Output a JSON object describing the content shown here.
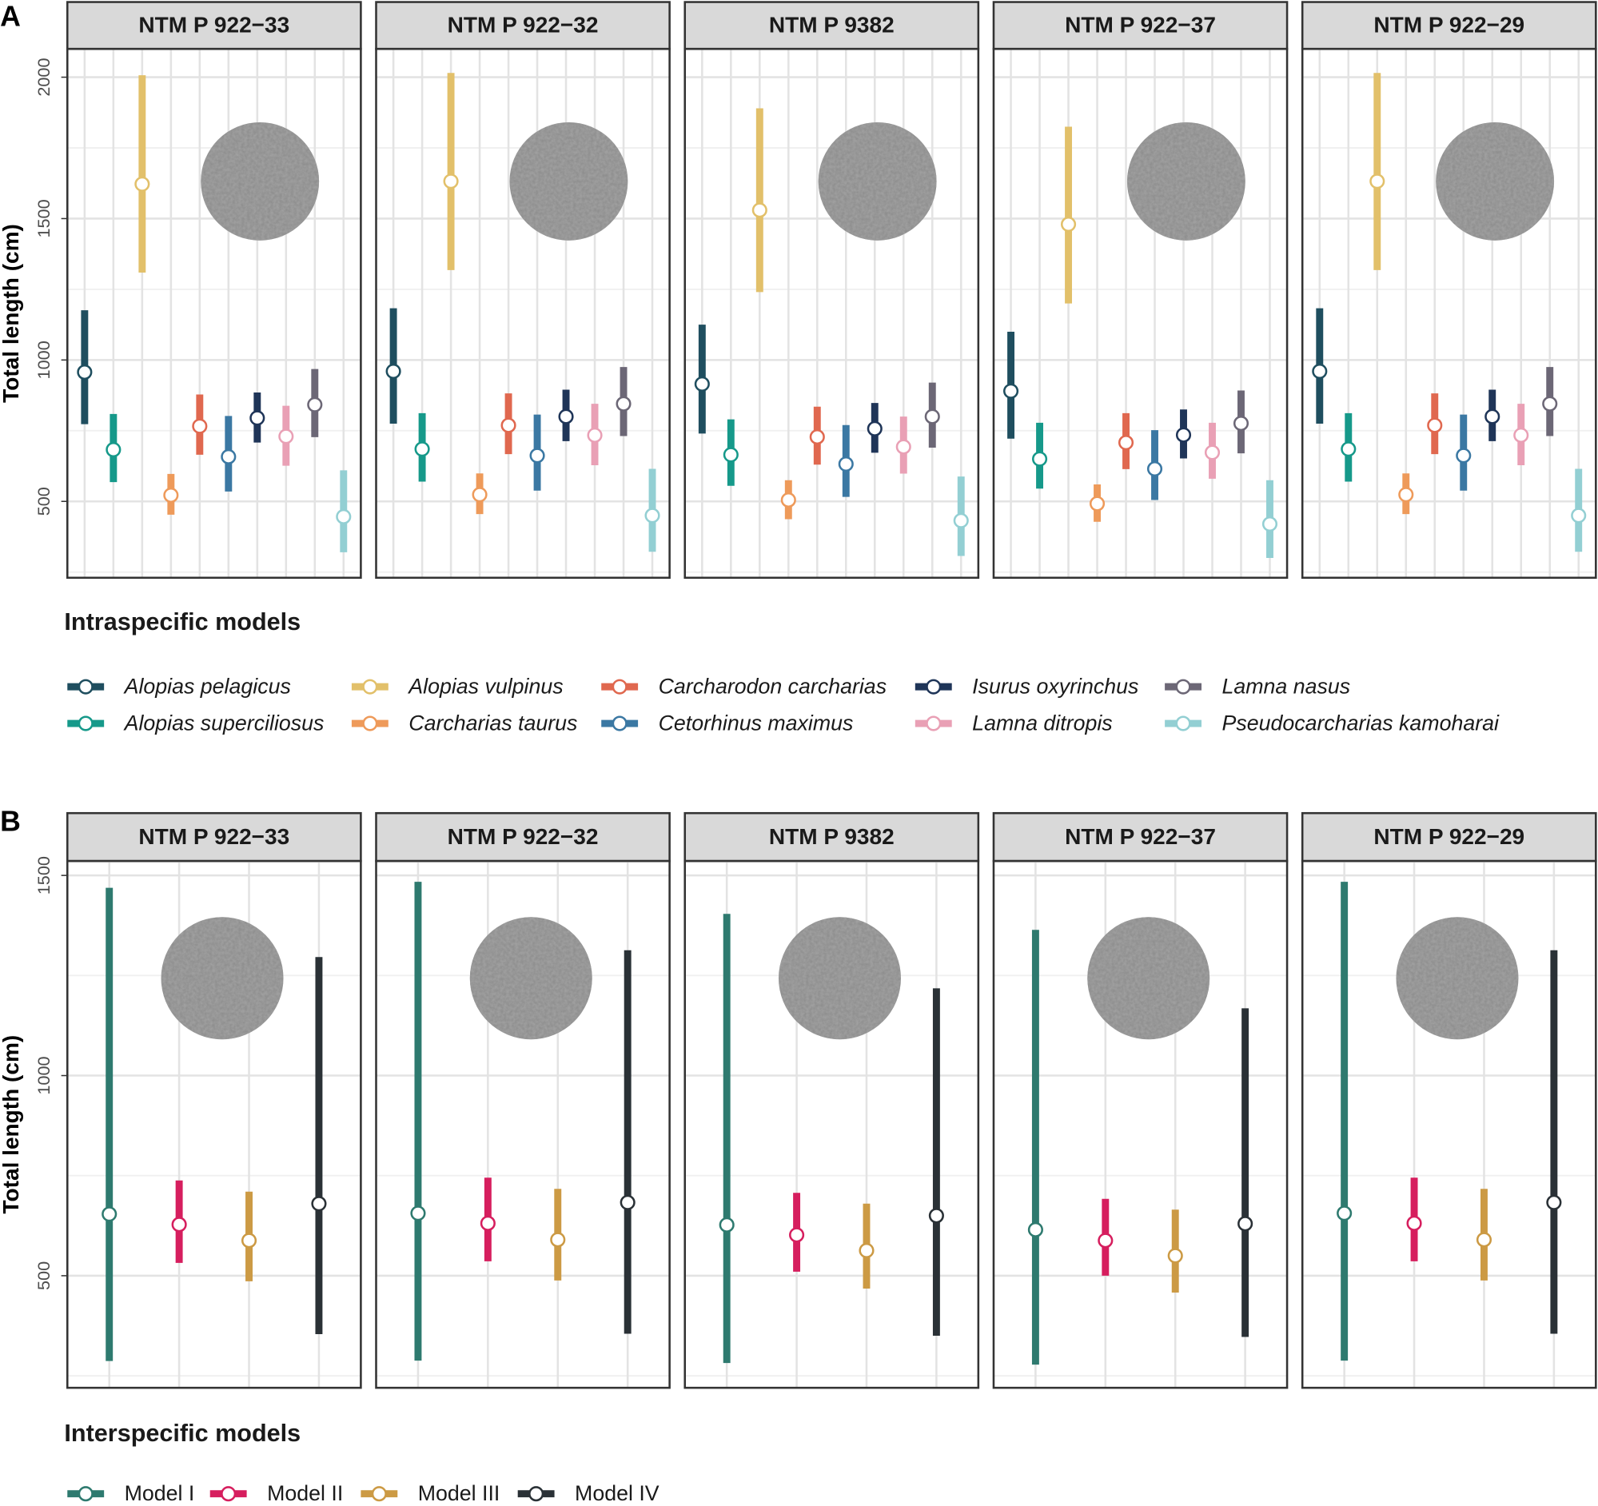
{
  "chart_data": [
    {
      "type": "errorbar",
      "panel_label": "A",
      "y_label": "Total length (cm)",
      "legend_title": "Intraspecific models",
      "italic_names": true,
      "ylim": [
        230,
        2100
      ],
      "yticks": [
        500,
        1000,
        1500,
        2000
      ],
      "grid": true,
      "series": [
        {
          "name": "Alopias pelagicus",
          "color": "#1f4e5f"
        },
        {
          "name": "Alopias superciliosus",
          "color": "#16998a"
        },
        {
          "name": "Alopias vulpinus",
          "color": "#e2c06a"
        },
        {
          "name": "Carcharias taurus",
          "color": "#ee9a5a"
        },
        {
          "name": "Carcharodon carcharias",
          "color": "#e0684f"
        },
        {
          "name": "Cetorhinus maximus",
          "color": "#3b78a3"
        },
        {
          "name": "Isurus oxyrinchus",
          "color": "#1f3558"
        },
        {
          "name": "Lamna ditropis",
          "color": "#e9a0b5"
        },
        {
          "name": "Lamna nasus",
          "color": "#6c6776"
        },
        {
          "name": "Pseudocarcharias kamoharai",
          "color": "#93cfd3"
        }
      ],
      "facets": [
        {
          "title": "NTM P 922−33",
          "values": [
            957,
            683,
            1622,
            522,
            766,
            658,
            795,
            730,
            842,
            446
          ],
          "lows": [
            773,
            568,
            1309,
            453,
            665,
            535,
            708,
            626,
            727,
            320
          ],
          "highs": [
            1176,
            809,
            2007,
            597,
            878,
            802,
            885,
            838,
            968,
            610
          ]
        },
        {
          "title": "NTM P 922−32",
          "values": [
            960,
            685,
            1632,
            524,
            769,
            662,
            800,
            734,
            845,
            450
          ],
          "lows": [
            775,
            570,
            1318,
            455,
            667,
            538,
            713,
            628,
            731,
            322
          ],
          "highs": [
            1183,
            812,
            2015,
            599,
            882,
            807,
            895,
            845,
            975,
            615
          ]
        },
        {
          "title": "NTM P 9382",
          "values": [
            915,
            665,
            1530,
            505,
            728,
            632,
            757,
            693,
            800,
            432
          ],
          "lows": [
            740,
            555,
            1240,
            437,
            630,
            516,
            672,
            598,
            690,
            307
          ],
          "highs": [
            1125,
            790,
            1890,
            575,
            835,
            770,
            848,
            800,
            920,
            588
          ]
        },
        {
          "title": "NTM P 922−37",
          "values": [
            890,
            650,
            1480,
            492,
            708,
            615,
            735,
            673,
            776,
            420
          ],
          "lows": [
            722,
            545,
            1200,
            428,
            614,
            505,
            652,
            580,
            670,
            300
          ],
          "highs": [
            1100,
            778,
            1825,
            560,
            812,
            752,
            825,
            778,
            892,
            575
          ]
        },
        {
          "title": "NTM P 922−29",
          "values": [
            960,
            685,
            1632,
            524,
            769,
            662,
            800,
            734,
            845,
            450
          ],
          "lows": [
            775,
            570,
            1318,
            455,
            667,
            538,
            713,
            628,
            731,
            322
          ],
          "highs": [
            1183,
            812,
            2015,
            599,
            882,
            807,
            895,
            845,
            975,
            615
          ]
        }
      ]
    },
    {
      "type": "errorbar",
      "panel_label": "B",
      "y_label": "Total length (cm)",
      "legend_title": "Interspecific models",
      "italic_names": false,
      "ylim": [
        220,
        1536
      ],
      "yticks": [
        500,
        1000,
        1500
      ],
      "grid": true,
      "series": [
        {
          "name": "Model I",
          "color": "#2e7a6f"
        },
        {
          "name": "Model II",
          "color": "#d61e5e"
        },
        {
          "name": "Model III",
          "color": "#cc9a44"
        },
        {
          "name": "Model IV",
          "color": "#2a3136"
        }
      ],
      "facets": [
        {
          "title": "NTM P 922−33",
          "values": [
            654,
            628,
            588,
            680
          ],
          "lows": [
            287,
            532,
            486,
            354
          ],
          "highs": [
            1469,
            738,
            710,
            1296
          ]
        },
        {
          "title": "NTM P 922−32",
          "values": [
            656,
            631,
            590,
            683
          ],
          "lows": [
            288,
            536,
            488,
            355
          ],
          "highs": [
            1484,
            745,
            717,
            1313
          ]
        },
        {
          "title": "NTM P 9382",
          "values": [
            627,
            602,
            563,
            650
          ],
          "lows": [
            282,
            510,
            468,
            350
          ],
          "highs": [
            1404,
            707,
            680,
            1218
          ]
        },
        {
          "title": "NTM P 922−37",
          "values": [
            615,
            588,
            550,
            630
          ],
          "lows": [
            278,
            500,
            458,
            347
          ],
          "highs": [
            1364,
            692,
            665,
            1168
          ]
        },
        {
          "title": "NTM P 922−29",
          "values": [
            656,
            631,
            590,
            683
          ],
          "lows": [
            288,
            536,
            488,
            355
          ],
          "highs": [
            1484,
            745,
            717,
            1313
          ]
        }
      ]
    }
  ]
}
